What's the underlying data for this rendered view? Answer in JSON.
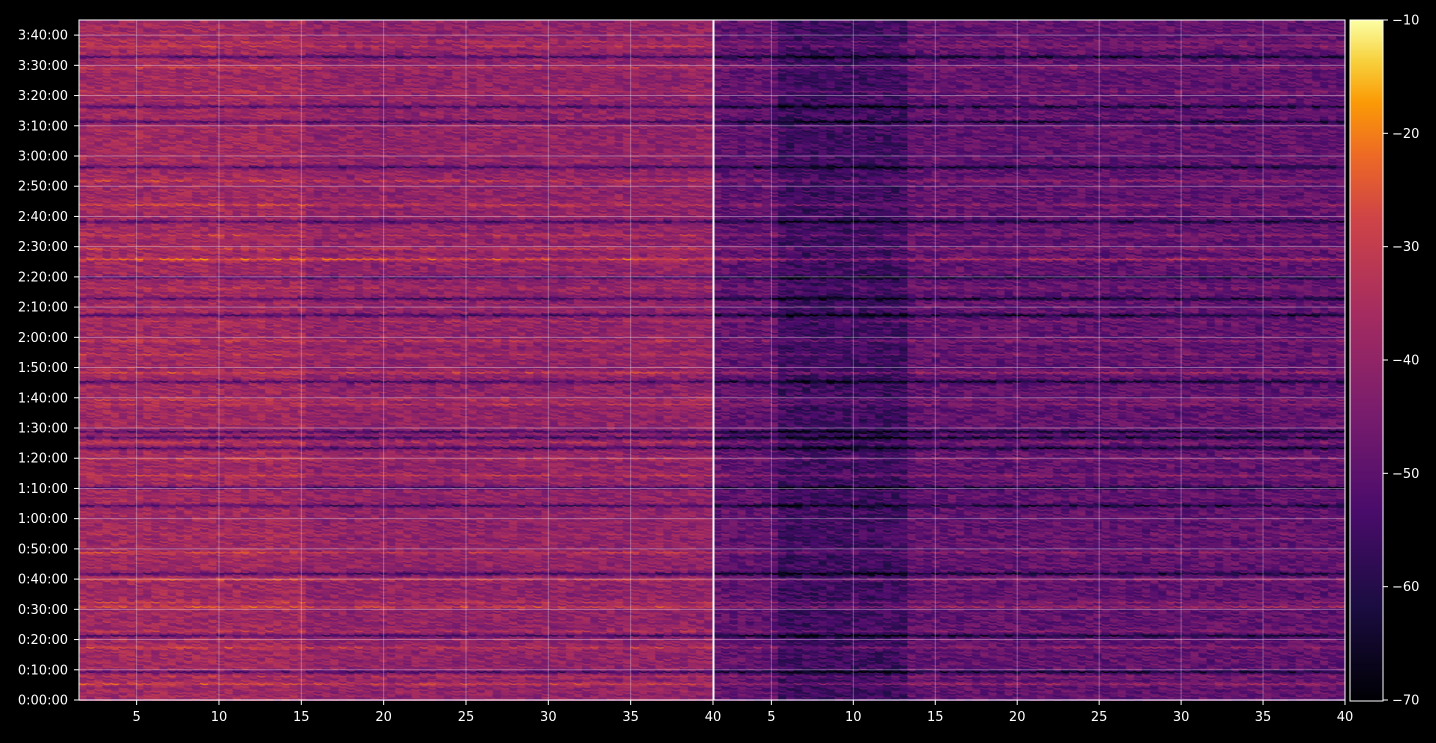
{
  "chart_data": {
    "type": "heatmap",
    "colormap": "inferno",
    "background_color": "#000000",
    "panels": [
      {
        "name": "",
        "x_range": [
          1.5,
          40
        ],
        "x_ticks": [
          5,
          10,
          15,
          20,
          25,
          30,
          35,
          40
        ],
        "y_ticks": [
          "0:00:00",
          "0:10:00",
          "0:20:00",
          "0:30:00",
          "0:40:00",
          "0:50:00",
          "1:00:00",
          "1:10:00",
          "1:20:00",
          "1:30:00",
          "1:40:00",
          "1:50:00",
          "2:00:00",
          "2:10:00",
          "2:20:00",
          "2:30:00",
          "2:40:00",
          "2:50:00",
          "3:00:00",
          "3:10:00",
          "3:20:00",
          "3:30:00",
          "3:40:00"
        ],
        "y_range_seconds": [
          0,
          13500
        ],
        "mean_level": -40,
        "grid": true
      },
      {
        "name": "",
        "x_range": [
          1.5,
          40
        ],
        "x_ticks": [
          5,
          10,
          15,
          20,
          25,
          30,
          35,
          40
        ],
        "y_range_seconds": [
          0,
          13500
        ],
        "mean_level": -49,
        "grid": true
      }
    ],
    "strong_rows_seconds": [
      [
        360,
        10
      ],
      [
        510,
        5
      ],
      [
        1080,
        9
      ],
      [
        1410,
        5
      ],
      [
        1890,
        11
      ],
      [
        1980,
        7
      ],
      [
        2430,
        9
      ],
      [
        2970,
        8
      ],
      [
        3330,
        3
      ],
      [
        4500,
        8
      ],
      [
        4830,
        6
      ],
      [
        5160,
        5
      ],
      [
        5910,
        7
      ],
      [
        6000,
        6
      ],
      [
        6540,
        10
      ],
      [
        6900,
        6
      ],
      [
        7170,
        7
      ],
      [
        7560,
        4
      ],
      [
        8220,
        4
      ],
      [
        8790,
        14
      ],
      [
        9000,
        7
      ],
      [
        9270,
        7
      ],
      [
        9870,
        9
      ],
      [
        10350,
        8
      ],
      [
        12120,
        5
      ],
      [
        12600,
        7
      ],
      [
        13020,
        7
      ],
      [
        13110,
        5
      ]
    ],
    "weak_rows_seconds": [
      600,
      1320,
      2550,
      3900,
      4260,
      5040,
      5250,
      5370,
      6360,
      7680,
      8010,
      8430,
      9540,
      10620,
      11520,
      11820,
      12810
    ],
    "colorbar": {
      "min": -70,
      "max": -10,
      "ticks": [
        "−10",
        "−20",
        "−30",
        "−40",
        "−50",
        "−60",
        "−70"
      ]
    }
  }
}
